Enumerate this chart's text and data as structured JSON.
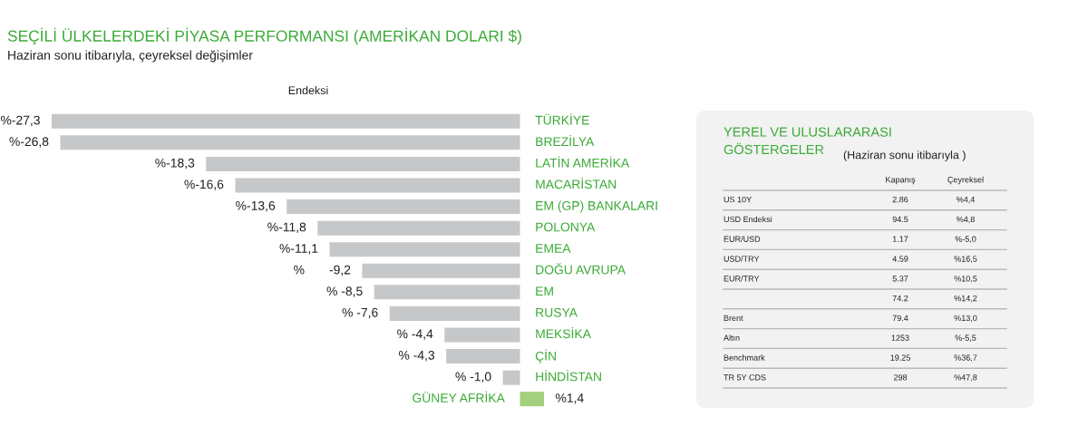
{
  "chart_data": [
    {
      "type": "bar",
      "orientation": "horizontal",
      "title": "SEÇİLİ ÜLKELERDEKİ PİYASA PERFORMANSI (AMERİKAN DOLARI $)",
      "subtitle": "Haziran sonu itibarıyla, çeyreksel değişimler",
      "xlabel": "Endeksi",
      "categories": [
        "TÜRKİYE",
        "BREZİLYA",
        "LATİN AMERİKA",
        "MACARİSTAN",
        "EM (GP) BANKALARI",
        "POLONYA",
        "EMEA",
        "DOĞU AVRUPA",
        "EM",
        "RUSYA",
        "MEKSİKA",
        "ÇİN",
        "HİNDİSTAN",
        "GÜNEY AFRİKA"
      ],
      "values": [
        -27.3,
        -26.8,
        -18.3,
        -16.6,
        -13.6,
        -11.8,
        -11.1,
        -9.2,
        -8.5,
        -7.6,
        -4.4,
        -4.3,
        -1.0,
        1.4
      ],
      "value_labels": [
        "%-27,3",
        "%-26,8",
        "%-18,3",
        "%-16,6",
        "%-13,6",
        "%-11,8",
        "%-11,1",
        "%       -9,2",
        "% -8,5",
        "% -7,6",
        "% -4,4",
        "% -4,3",
        "% -1,0",
        "%1,4"
      ],
      "colors": [
        "#c6c7c8",
        "#c6c7c8",
        "#c6c7c8",
        "#c6c7c8",
        "#c6c7c8",
        "#c6c7c8",
        "#c6c7c8",
        "#c6c7c8",
        "#c6c7c8",
        "#c6c7c8",
        "#c6c7c8",
        "#c6c7c8",
        "#c6c7c8",
        "#a2d07c"
      ],
      "tick_labels": "y"
    },
    {
      "type": "other",
      "title": "YEREL VE ULUSLARARASI\nGÖSTERGELER",
      "subtitle": "(Haziran sonu itibarıyla )",
      "categories": [
        "Kapanış",
        "Çeyreksel"
      ],
      "y_categories": [
        "US 10Y",
        "USD Endeksi",
        "EUR/USD",
        "USD/TRY",
        "EUR/TRY",
        null,
        "Brent",
        "Altın",
        "Benchmark",
        "TR 5Y CDS"
      ],
      "cell_labels": [
        [
          "2.86",
          "%4,4"
        ],
        [
          "94.5",
          "%4,8"
        ],
        [
          "1.17",
          "%-5,0"
        ],
        [
          "4.59",
          "%16,5"
        ],
        [
          "5.37",
          "%10,5"
        ],
        [
          "74.2",
          "%14,2"
        ],
        [
          "79.4",
          "%13,0"
        ],
        [
          "1253",
          "%-5,5"
        ],
        [
          "19.25",
          "%36,7"
        ],
        [
          "298",
          "%47,8"
        ]
      ]
    }
  ]
}
